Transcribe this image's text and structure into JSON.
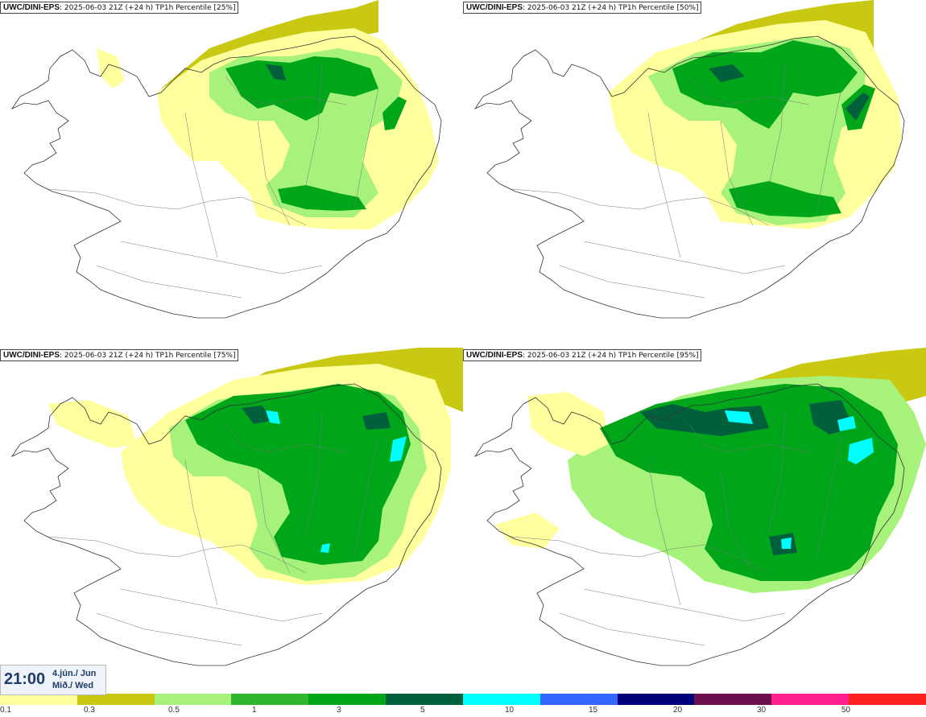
{
  "panels": [
    {
      "model": "UWC/DINI-EPS",
      "subtitle": ": 2025-06-03 21Z (+24 h) TP1h Percentile [25%]"
    },
    {
      "model": "UWC/DINI-EPS",
      "subtitle": ": 2025-06-03 21Z (+24 h) TP1h Percentile [50%]"
    },
    {
      "model": "UWC/DINI-EPS",
      "subtitle": ": 2025-06-03 21Z (+24 h) TP1h Percentile [75%]"
    },
    {
      "model": "UWC/DINI-EPS",
      "subtitle": ": 2025-06-03 21Z (+24 h) TP1h Percentile [95%]"
    }
  ],
  "time": {
    "hour": "21:00",
    "date": "4.jún./ Jun",
    "day": "Mið./ Wed"
  },
  "legend": {
    "colors": [
      "#ffff9e",
      "#c9c913",
      "#a6f27a",
      "#2fb52f",
      "#00a619",
      "#00603c",
      "#00ffff",
      "#3366ff",
      "#00007a",
      "#6b0f4f",
      "#ff1f8f",
      "#ff2020"
    ],
    "labels": [
      "0.1",
      "0.3",
      "0.5",
      "1",
      "3",
      "5",
      "10",
      "15",
      "20",
      "30",
      "50"
    ]
  },
  "palette": {
    "light_yellow": "#ffff9e",
    "olive": "#c9c913",
    "light_green": "#a6f27a",
    "green": "#00a619",
    "dark_green": "#00603c",
    "cyan": "#00ffff"
  }
}
